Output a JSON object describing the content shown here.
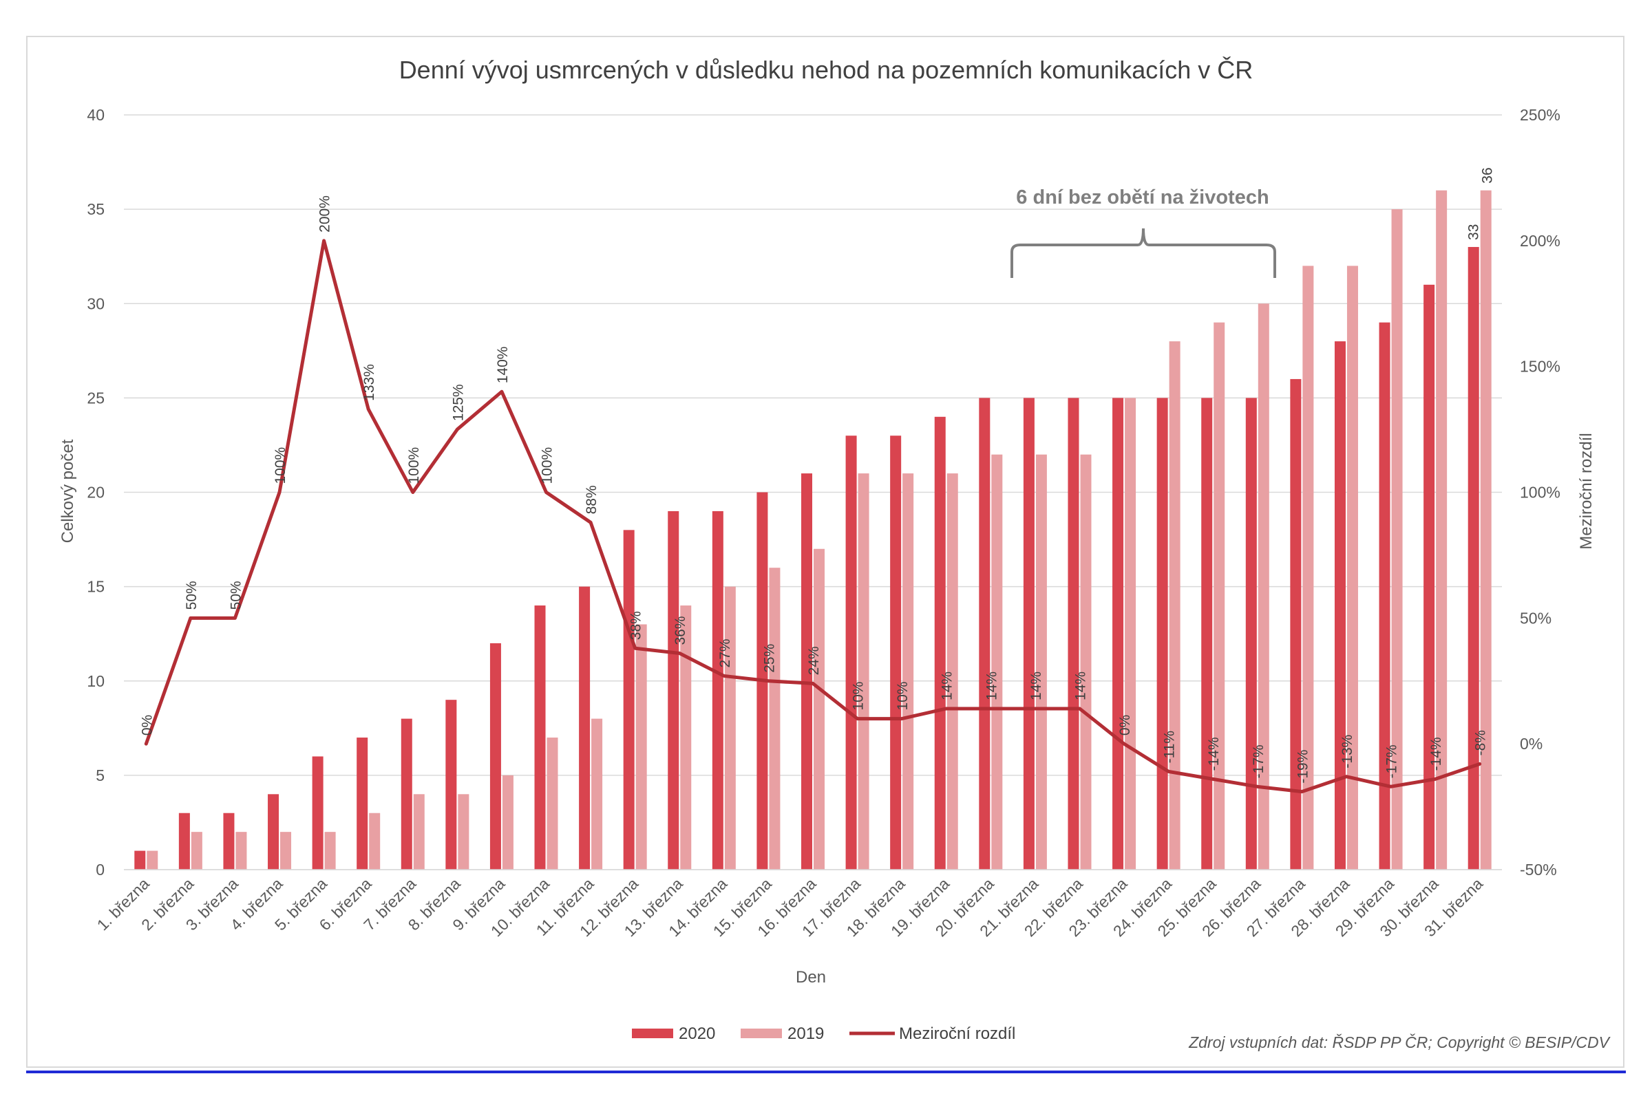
{
  "chart_data": {
    "type": "bar+line",
    "title": "Denní vývoj usmrcených v důsledku nehod na pozemních komunikacích v ČR",
    "xlabel": "Den",
    "ylabel": "Celkový počet",
    "y2label": "Meziroční rozdíl",
    "ylim": [
      0,
      40
    ],
    "yticks": [
      "0",
      "5",
      "10",
      "15",
      "20",
      "25",
      "30",
      "35",
      "40"
    ],
    "y2lim": [
      -50,
      250
    ],
    "y2ticks": [
      "-50%",
      "0%",
      "50%",
      "100%",
      "150%",
      "200%",
      "250%"
    ],
    "categories": [
      "1. března",
      "2. března",
      "3. března",
      "4. března",
      "5. března",
      "6. března",
      "7. března",
      "8. března",
      "9. března",
      "10. března",
      "11. března",
      "12. března",
      "13. března",
      "14. března",
      "15. března",
      "16. března",
      "17. března",
      "18. března",
      "19. března",
      "20. března",
      "21. března",
      "22. března",
      "23. března",
      "24. března",
      "25. března",
      "26. března",
      "27. března",
      "28. března",
      "29. března",
      "30. března",
      "31. března"
    ],
    "series": [
      {
        "name": "2020",
        "type": "bar",
        "color": "#d9444f",
        "values": [
          1,
          3,
          3,
          4,
          6,
          7,
          8,
          9,
          12,
          14,
          15,
          18,
          19,
          19,
          20,
          21,
          23,
          23,
          24,
          25,
          25,
          25,
          25,
          25,
          25,
          25,
          26,
          28,
          29,
          31,
          33
        ]
      },
      {
        "name": "2019",
        "type": "bar",
        "color": "#e8a0a3",
        "values": [
          1,
          2,
          2,
          2,
          2,
          3,
          4,
          4,
          5,
          7,
          8,
          13,
          14,
          15,
          16,
          17,
          21,
          21,
          21,
          22,
          22,
          22,
          25,
          28,
          29,
          30,
          32,
          32,
          35,
          36,
          36
        ]
      },
      {
        "name": "Meziroční rozdíl",
        "type": "line",
        "axis": "y2",
        "color": "#b32e35",
        "values": [
          0,
          50,
          50,
          100,
          200,
          133,
          100,
          125,
          140,
          100,
          88,
          38,
          36,
          27,
          25,
          24,
          10,
          10,
          14,
          14,
          14,
          14,
          0,
          -11,
          -14,
          -17,
          -19,
          -13,
          -17,
          -14,
          -8
        ],
        "labels": [
          "0%",
          "50%",
          "50%",
          "100%",
          "200%",
          "133%",
          "100%",
          "125%",
          "140%",
          "100%",
          "88%",
          "38%",
          "36%",
          "27%",
          "25%",
          "24%",
          "10%",
          "10%",
          "14%",
          "14%",
          "14%",
          "14%",
          "0%",
          "-11%",
          "-14%",
          "-17%",
          "-19%",
          "-13%",
          "-17%",
          "-14%",
          "-8%"
        ]
      }
    ],
    "bar_end_labels": {
      "2020": "33",
      "2019": "36"
    },
    "annotation": "6 dní bez obětí na životech",
    "legend": {
      "position": "bottom",
      "entries": [
        "2020",
        "2019",
        "Meziroční rozdíl"
      ]
    }
  },
  "source_note": "Zdroj vstupních dat: ŘSDP PP ČR; Copyright © BESIP/CDV"
}
